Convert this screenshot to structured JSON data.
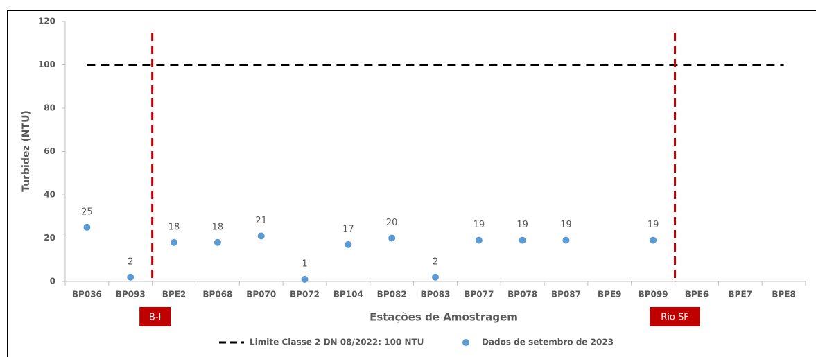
{
  "chart_data": {
    "type": "scatter",
    "x_label": "Estações de Amostragem",
    "y_label": "Turbidez (NTU)",
    "categories": [
      "BP036",
      "BP093",
      "BPE2",
      "BP068",
      "BP070",
      "BP072",
      "BP104",
      "BP082",
      "BP083",
      "BP077",
      "BP078",
      "BP087",
      "BPE9",
      "BP099",
      "BPE6",
      "BPE7",
      "BPE8"
    ],
    "series": [
      {
        "name": "Dados de setembro de 2023",
        "color": "#5b9bd5",
        "values": [
          25,
          2,
          18,
          18,
          21,
          1,
          17,
          20,
          2,
          19,
          19,
          19,
          null,
          19,
          null,
          null,
          null
        ]
      }
    ],
    "limit": {
      "name": "Limite Classe 2 DN 08/2022: 100 NTU",
      "value": 100,
      "color": "#000000"
    },
    "dividers": [
      {
        "label": "B-I",
        "after": "BP093"
      },
      {
        "label": "Rio SF",
        "after": "BP099"
      }
    ],
    "divider_color": "#c00000",
    "ylim": [
      0,
      120
    ],
    "yticks": [
      0,
      20,
      40,
      60,
      80,
      100,
      120
    ],
    "grid": false
  }
}
